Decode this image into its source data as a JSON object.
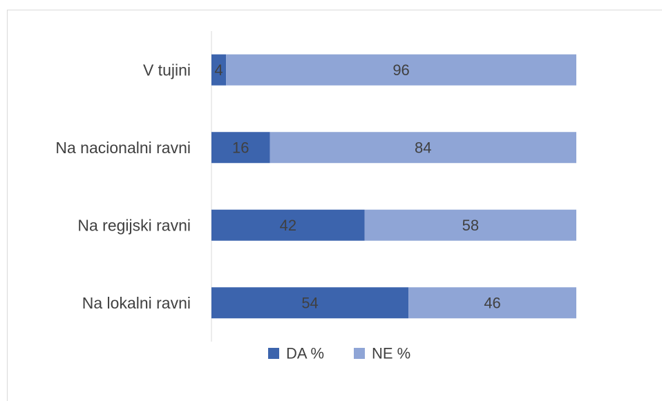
{
  "chart_data": {
    "type": "bar",
    "orientation": "horizontal",
    "stacked": true,
    "categories": [
      "V tujini",
      "Na nacionalni ravni",
      "Na regijski ravni",
      "Na lokalni ravni"
    ],
    "series": [
      {
        "name": "DA %",
        "values": [
          4,
          16,
          42,
          54
        ],
        "color": "#3c64ad"
      },
      {
        "name": "NE %",
        "values": [
          96,
          84,
          58,
          46
        ],
        "color": "#8fa5d6"
      }
    ],
    "xlim": [
      0,
      100
    ],
    "grid": false,
    "legend_position": "bottom"
  }
}
